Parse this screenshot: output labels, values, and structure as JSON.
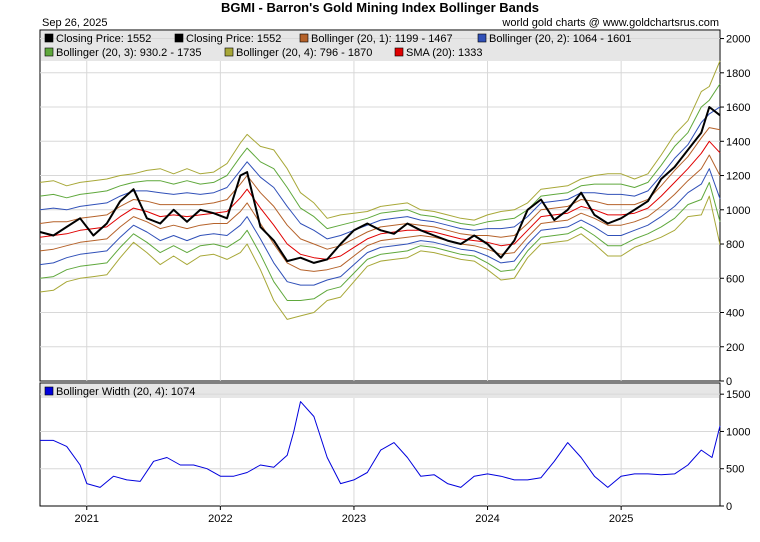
{
  "header": {
    "title": "BGMI - Barron's Gold Mining Index Bollinger Bands",
    "date": "Sep 26, 2025",
    "source": "world gold charts @ www.goldchartsrus.com"
  },
  "colors": {
    "price": "#000000",
    "sma": "#e00000",
    "b1": "#b5622a",
    "b2": "#3050b8",
    "b3": "#5fa83c",
    "b4": "#a8a838",
    "width": "#0000dd",
    "legend_bg": "#e6e6e6"
  },
  "chart_data": [
    {
      "type": "line",
      "y_scale": "linear",
      "ylim": [
        0,
        2050
      ],
      "yticks": [
        0,
        200,
        400,
        600,
        800,
        1000,
        1200,
        1400,
        1600,
        1800,
        2000
      ],
      "xlim": [
        2020.65,
        2025.74
      ],
      "legend": [
        {
          "key": "price",
          "label": "Closing Price: 1552"
        },
        {
          "key": "price",
          "label": "Closing Price: 1552"
        },
        {
          "key": "b1",
          "label": "Bollinger (20, 1): 1199 - 1467"
        },
        {
          "key": "b2",
          "label": "Bollinger (20, 2): 1064 - 1601"
        },
        {
          "key": "b3",
          "label": "Bollinger (20, 3): 930.2 - 1735"
        },
        {
          "key": "b4",
          "label": "Bollinger (20, 4): 796 - 1870"
        },
        {
          "key": "sma",
          "label": "SMA (20): 1333"
        }
      ],
      "x": [
        2020.65,
        2020.75,
        2020.85,
        2020.95,
        2021.05,
        2021.15,
        2021.25,
        2021.35,
        2021.45,
        2021.55,
        2021.65,
        2021.75,
        2021.85,
        2021.95,
        2022.05,
        2022.15,
        2022.2,
        2022.3,
        2022.4,
        2022.5,
        2022.6,
        2022.7,
        2022.8,
        2022.9,
        2023.0,
        2023.1,
        2023.2,
        2023.3,
        2023.4,
        2023.5,
        2023.6,
        2023.7,
        2023.8,
        2023.9,
        2024.0,
        2024.1,
        2024.2,
        2024.3,
        2024.4,
        2024.5,
        2024.6,
        2024.7,
        2024.8,
        2024.9,
        2025.0,
        2025.1,
        2025.2,
        2025.3,
        2025.4,
        2025.5,
        2025.6,
        2025.66,
        2025.74
      ],
      "series": [
        {
          "key": "price",
          "values": [
            870,
            850,
            900,
            950,
            850,
            920,
            1050,
            1120,
            950,
            920,
            1000,
            930,
            1000,
            980,
            950,
            1200,
            1220,
            900,
            820,
            700,
            720,
            690,
            710,
            800,
            880,
            920,
            880,
            860,
            920,
            880,
            850,
            820,
            800,
            850,
            800,
            720,
            820,
            1000,
            1060,
            940,
            1000,
            1100,
            970,
            920,
            950,
            1000,
            1050,
            1180,
            1250,
            1350,
            1450,
            1600,
            1552
          ]
        },
        {
          "key": "sma",
          "values": [
            840,
            850,
            860,
            880,
            890,
            900,
            960,
            1010,
            990,
            960,
            970,
            960,
            970,
            980,
            990,
            1070,
            1120,
            1010,
            910,
            800,
            740,
            720,
            710,
            730,
            780,
            830,
            860,
            870,
            880,
            880,
            870,
            850,
            830,
            820,
            810,
            790,
            800,
            880,
            960,
            970,
            980,
            1020,
            1000,
            970,
            970,
            980,
            1010,
            1080,
            1160,
            1240,
            1330,
            1400,
            1333
          ]
        },
        {
          "key": "b1_u",
          "values": [
            920,
            930,
            930,
            950,
            960,
            970,
            1020,
            1060,
            1050,
            1030,
            1030,
            1030,
            1030,
            1040,
            1060,
            1150,
            1200,
            1100,
            1020,
            910,
            830,
            800,
            770,
            790,
            830,
            870,
            900,
            910,
            920,
            910,
            900,
            880,
            860,
            850,
            850,
            840,
            850,
            920,
            1000,
            1010,
            1020,
            1060,
            1050,
            1030,
            1030,
            1030,
            1060,
            1140,
            1230,
            1310,
            1420,
            1480,
            1467
          ]
        },
        {
          "key": "b1_l",
          "values": [
            760,
            770,
            790,
            810,
            820,
            830,
            900,
            960,
            930,
            890,
            910,
            890,
            910,
            920,
            920,
            990,
            1040,
            920,
            800,
            690,
            650,
            640,
            650,
            670,
            730,
            790,
            820,
            830,
            840,
            850,
            840,
            820,
            800,
            790,
            770,
            740,
            750,
            840,
            920,
            930,
            940,
            980,
            950,
            910,
            910,
            930,
            960,
            1020,
            1090,
            1170,
            1240,
            1320,
            1199
          ]
        },
        {
          "key": "b2_u",
          "values": [
            1000,
            1010,
            1000,
            1020,
            1030,
            1040,
            1080,
            1110,
            1110,
            1100,
            1090,
            1100,
            1090,
            1100,
            1130,
            1230,
            1280,
            1190,
            1130,
            1020,
            920,
            880,
            830,
            850,
            880,
            910,
            940,
            950,
            960,
            940,
            930,
            910,
            890,
            880,
            890,
            890,
            900,
            960,
            1040,
            1050,
            1060,
            1100,
            1100,
            1090,
            1090,
            1080,
            1110,
            1200,
            1300,
            1380,
            1510,
            1560,
            1601
          ]
        },
        {
          "key": "b2_l",
          "values": [
            680,
            690,
            720,
            740,
            750,
            760,
            840,
            910,
            870,
            820,
            850,
            820,
            850,
            860,
            850,
            910,
            960,
            830,
            690,
            580,
            560,
            560,
            590,
            610,
            680,
            750,
            780,
            790,
            800,
            820,
            810,
            790,
            770,
            760,
            730,
            690,
            700,
            800,
            880,
            890,
            900,
            940,
            900,
            850,
            850,
            880,
            910,
            960,
            1020,
            1100,
            1150,
            1240,
            1064
          ]
        },
        {
          "key": "b3_u",
          "values": [
            1080,
            1090,
            1070,
            1090,
            1100,
            1110,
            1140,
            1160,
            1170,
            1170,
            1150,
            1170,
            1150,
            1160,
            1200,
            1310,
            1360,
            1280,
            1240,
            1130,
            1010,
            960,
            890,
            910,
            930,
            950,
            980,
            990,
            1000,
            970,
            960,
            940,
            920,
            910,
            930,
            940,
            950,
            1000,
            1080,
            1090,
            1100,
            1140,
            1150,
            1150,
            1150,
            1130,
            1160,
            1260,
            1370,
            1450,
            1600,
            1640,
            1735
          ]
        },
        {
          "key": "b3_l",
          "values": [
            600,
            610,
            650,
            670,
            680,
            690,
            780,
            860,
            810,
            750,
            790,
            750,
            790,
            800,
            780,
            830,
            880,
            740,
            580,
            470,
            470,
            480,
            530,
            550,
            630,
            710,
            740,
            750,
            760,
            790,
            780,
            760,
            740,
            730,
            690,
            640,
            650,
            760,
            840,
            850,
            860,
            900,
            850,
            790,
            790,
            830,
            860,
            900,
            950,
            1030,
            1060,
            1160,
            930.2
          ]
        },
        {
          "key": "b4_u",
          "values": [
            1160,
            1170,
            1140,
            1160,
            1170,
            1180,
            1200,
            1210,
            1230,
            1240,
            1210,
            1240,
            1210,
            1220,
            1270,
            1390,
            1440,
            1370,
            1350,
            1240,
            1100,
            1040,
            950,
            970,
            980,
            990,
            1020,
            1030,
            1040,
            1000,
            990,
            970,
            950,
            940,
            970,
            990,
            1000,
            1040,
            1120,
            1130,
            1140,
            1180,
            1200,
            1210,
            1210,
            1180,
            1210,
            1320,
            1440,
            1520,
            1690,
            1720,
            1870
          ]
        },
        {
          "key": "b4_l",
          "values": [
            520,
            530,
            580,
            600,
            610,
            620,
            720,
            810,
            750,
            680,
            730,
            680,
            730,
            740,
            710,
            750,
            800,
            650,
            470,
            360,
            380,
            400,
            470,
            490,
            580,
            670,
            700,
            710,
            720,
            760,
            750,
            730,
            710,
            700,
            650,
            590,
            600,
            720,
            800,
            810,
            820,
            860,
            800,
            730,
            730,
            780,
            810,
            840,
            880,
            960,
            970,
            1080,
            796
          ]
        }
      ]
    },
    {
      "type": "line",
      "ylim": [
        0,
        1650
      ],
      "yticks": [
        0,
        500,
        1000,
        1500
      ],
      "xlim": [
        2020.65,
        2025.74
      ],
      "xticks": [
        2021,
        2022,
        2023,
        2024,
        2025
      ],
      "xtick_labels": [
        "2021",
        "2022",
        "2023",
        "2024",
        "2025"
      ],
      "legend": [
        {
          "key": "width",
          "label": "Bollinger Width (20, 4): 1074"
        }
      ],
      "series": [
        {
          "key": "width",
          "x": [
            2020.65,
            2020.75,
            2020.85,
            2020.95,
            2021.0,
            2021.1,
            2021.2,
            2021.3,
            2021.4,
            2021.5,
            2021.6,
            2021.7,
            2021.8,
            2021.9,
            2022.0,
            2022.1,
            2022.2,
            2022.3,
            2022.4,
            2022.5,
            2022.55,
            2022.6,
            2022.7,
            2022.8,
            2022.9,
            2023.0,
            2023.1,
            2023.2,
            2023.3,
            2023.4,
            2023.5,
            2023.6,
            2023.7,
            2023.8,
            2023.9,
            2024.0,
            2024.1,
            2024.2,
            2024.3,
            2024.4,
            2024.5,
            2024.6,
            2024.7,
            2024.8,
            2024.9,
            2025.0,
            2025.1,
            2025.2,
            2025.3,
            2025.4,
            2025.5,
            2025.6,
            2025.68,
            2025.74
          ],
          "values": [
            880,
            880,
            800,
            550,
            300,
            250,
            400,
            350,
            330,
            600,
            650,
            550,
            550,
            500,
            400,
            400,
            450,
            550,
            520,
            680,
            1000,
            1400,
            1200,
            650,
            300,
            350,
            450,
            750,
            850,
            650,
            400,
            420,
            300,
            250,
            400,
            430,
            400,
            350,
            350,
            380,
            600,
            850,
            650,
            400,
            250,
            400,
            430,
            430,
            420,
            430,
            550,
            750,
            650,
            1074
          ]
        }
      ]
    }
  ]
}
